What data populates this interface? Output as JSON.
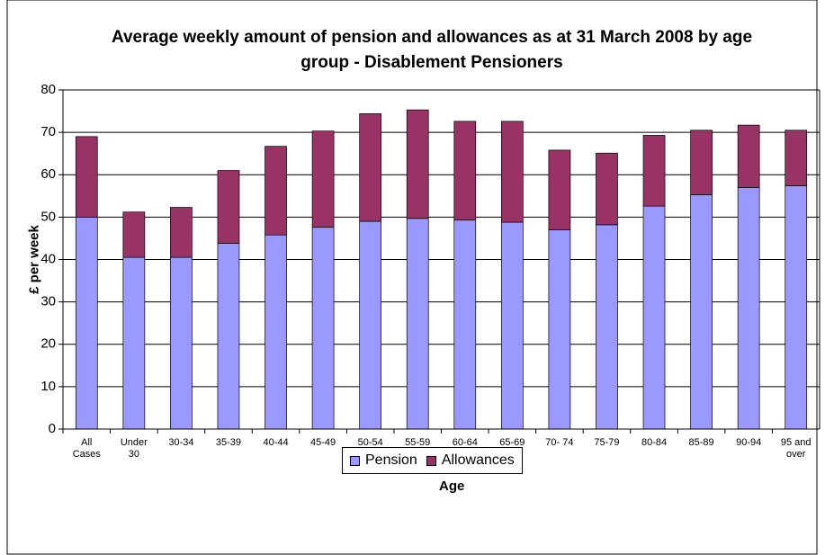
{
  "chart_data": {
    "type": "stacked_bar",
    "title": "Average weekly amount of pension and allowances as at 31 March 2008 by age group - Disablement Pensioners",
    "x_label": "Age",
    "y_label": "£ per week",
    "categories": [
      "All\nCases",
      "Under\n30",
      "30-34",
      "35-39",
      "40-44",
      "45-49",
      "50-54",
      "55-59",
      "60-64",
      "65-69",
      "70- 74",
      "75-79",
      "80-84",
      "85-89",
      "90-94",
      "95 and\nover"
    ],
    "series": [
      {
        "name": "Pension",
        "color": "#9999ff",
        "values": [
          50,
          40.5,
          40.5,
          43.8,
          45.8,
          47.6,
          49,
          49.7,
          49.3,
          48.8,
          47,
          48.2,
          52.6,
          55.3,
          57,
          57.4
        ]
      },
      {
        "name": "Allowances",
        "color": "#993366",
        "values": [
          19,
          10.7,
          11.8,
          17.2,
          20.9,
          22.7,
          25.4,
          25.6,
          23.3,
          23.8,
          18.8,
          16.9,
          16.7,
          15.2,
          14.7,
          13.1
        ]
      }
    ],
    "ylim": [
      0,
      80
    ],
    "yticks": [
      0,
      10,
      20,
      30,
      40,
      50,
      60,
      70,
      80
    ],
    "grid": true,
    "legend": "bottom"
  }
}
